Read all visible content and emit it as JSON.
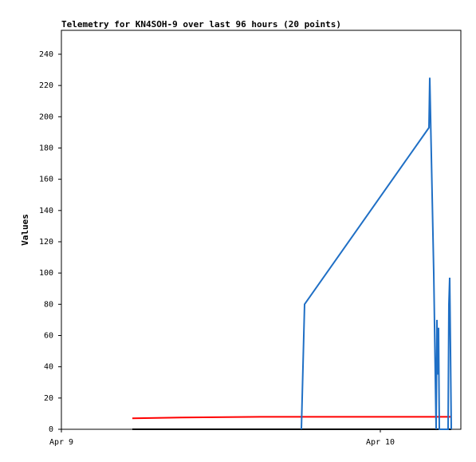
{
  "chart_data": {
    "type": "line",
    "title": "Telemetry for KN4SOH-9 over last 96 hours (20 points)",
    "y_label": "Values",
    "xlim": [
      0,
      30.06
    ],
    "xticks": [
      {
        "value": 0,
        "label": "Apr 9"
      },
      {
        "value": 24,
        "label": "Apr 10"
      }
    ],
    "ylim": [
      0,
      255.3
    ],
    "yticks": [
      0,
      20,
      40,
      60,
      80,
      100,
      120,
      140,
      160,
      180,
      200,
      220,
      240
    ],
    "grid": false,
    "series": [
      {
        "name": "black",
        "color": "#000000",
        "x": [
          5.34,
          29.34
        ],
        "values": [
          0,
          0
        ]
      },
      {
        "name": "red",
        "color": "#ff0000",
        "x": [
          5.34,
          9,
          15,
          29.34
        ],
        "values": [
          7,
          7.5,
          8,
          8
        ]
      },
      {
        "name": "blue",
        "color": "#1f6fc5",
        "x": [
          18.06,
          18.3,
          27.66,
          27.72,
          28.02,
          28.2,
          28.26,
          28.32,
          28.38,
          28.44,
          29.1,
          29.16,
          29.22,
          29.28,
          29.34
        ],
        "values": [
          0,
          80,
          193,
          225,
          100,
          0,
          70,
          35,
          65,
          0,
          0,
          80,
          97,
          50,
          0
        ]
      }
    ]
  }
}
